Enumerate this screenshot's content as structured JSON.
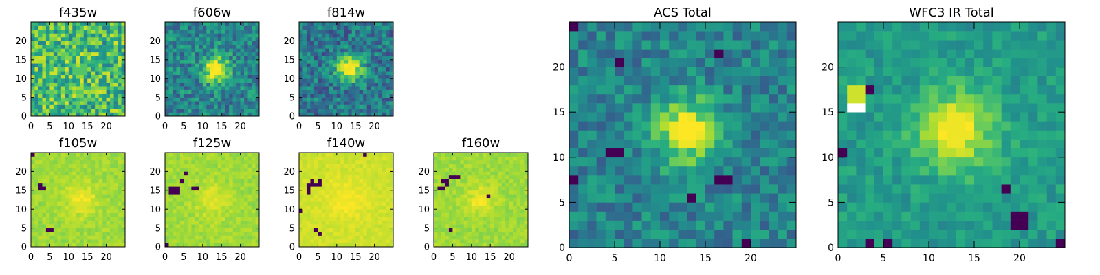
{
  "chart_data": [
    {
      "type": "heatmap",
      "title": "f435w",
      "grid_size": 25,
      "xlim": [
        0,
        25
      ],
      "ylim": [
        0,
        25
      ],
      "xticks": [
        0,
        5,
        10,
        15,
        20
      ],
      "yticks": [
        0,
        5,
        10,
        15,
        20
      ],
      "colormap": "viridis",
      "source": {
        "center": [
          12.5,
          12
        ],
        "radius": 2.6,
        "peak": 0.75,
        "base": 0.68,
        "noise": 0.26,
        "hot_pixels": [],
        "saturated_pixels": []
      }
    },
    {
      "type": "heatmap",
      "title": "f606w",
      "grid_size": 25,
      "xlim": [
        0,
        25
      ],
      "ylim": [
        0,
        25
      ],
      "xticks": [
        0,
        5,
        10,
        15,
        20
      ],
      "yticks": [
        0,
        5,
        10,
        15,
        20
      ],
      "colormap": "viridis",
      "source": {
        "center": [
          13,
          12
        ],
        "radius": 2.5,
        "peak": 1.0,
        "base": 0.45,
        "noise": 0.2,
        "hot_pixels": [],
        "saturated_pixels": []
      }
    },
    {
      "type": "heatmap",
      "title": "f814w",
      "grid_size": 25,
      "xlim": [
        0,
        25
      ],
      "ylim": [
        0,
        25
      ],
      "xticks": [
        0,
        5,
        10,
        15,
        20
      ],
      "yticks": [
        0,
        5,
        10,
        15,
        20
      ],
      "colormap": "viridis",
      "source": {
        "center": [
          13,
          12
        ],
        "radius": 2.5,
        "peak": 1.0,
        "base": 0.4,
        "noise": 0.2,
        "hot_pixels": [],
        "saturated_pixels": []
      }
    },
    {
      "type": "heatmap",
      "title": "f105w",
      "grid_size": 25,
      "xlim": [
        0,
        25
      ],
      "ylim": [
        0,
        25
      ],
      "xticks": [
        0,
        5,
        10,
        15,
        20
      ],
      "yticks": [
        0,
        5,
        10,
        15,
        20
      ],
      "colormap": "viridis",
      "source": {
        "center": [
          13,
          12
        ],
        "radius": 3.2,
        "peak": 0.97,
        "base": 0.86,
        "noise": 0.05,
        "hot_pixels": [
          [
            2,
            16
          ],
          [
            2,
            15
          ],
          [
            3,
            15
          ],
          [
            4,
            4
          ],
          [
            5,
            4
          ],
          [
            0,
            24
          ]
        ],
        "saturated_pixels": []
      }
    },
    {
      "type": "heatmap",
      "title": "f125w",
      "grid_size": 25,
      "xlim": [
        0,
        25
      ],
      "ylim": [
        0,
        25
      ],
      "xticks": [
        0,
        5,
        10,
        15,
        20
      ],
      "yticks": [
        0,
        5,
        10,
        15,
        20
      ],
      "colormap": "viridis",
      "source": {
        "center": [
          12,
          12
        ],
        "radius": 3.4,
        "peak": 0.95,
        "base": 0.86,
        "noise": 0.05,
        "hot_pixels": [
          [
            1,
            15
          ],
          [
            2,
            15
          ],
          [
            3,
            15
          ],
          [
            1,
            14
          ],
          [
            2,
            14
          ],
          [
            3,
            14
          ],
          [
            4,
            17
          ],
          [
            7,
            15
          ],
          [
            8,
            15
          ],
          [
            5,
            19
          ],
          [
            0,
            0
          ]
        ],
        "saturated_pixels": []
      }
    },
    {
      "type": "heatmap",
      "title": "f140w",
      "grid_size": 25,
      "xlim": [
        0,
        25
      ],
      "ylim": [
        0,
        25
      ],
      "xticks": [
        0,
        5,
        10,
        15,
        20
      ],
      "yticks": [
        0,
        5,
        10,
        15,
        20
      ],
      "colormap": "viridis",
      "source": {
        "center": [
          12,
          12
        ],
        "radius": 4,
        "peak": 0.99,
        "base": 0.93,
        "noise": 0.03,
        "hot_pixels": [
          [
            2,
            16
          ],
          [
            2,
            15
          ],
          [
            3,
            16
          ],
          [
            3,
            17
          ],
          [
            4,
            16
          ],
          [
            5,
            16
          ],
          [
            5,
            17
          ],
          [
            2,
            14
          ],
          [
            0,
            9
          ],
          [
            4,
            4
          ],
          [
            5,
            3
          ],
          [
            17,
            24
          ]
        ],
        "saturated_pixels": []
      }
    },
    {
      "type": "heatmap",
      "title": "f160w",
      "grid_size": 25,
      "xlim": [
        0,
        25
      ],
      "ylim": [
        0,
        25
      ],
      "xticks": [
        0,
        5,
        10,
        15,
        20
      ],
      "yticks": [
        0,
        5,
        10,
        15,
        20
      ],
      "colormap": "viridis",
      "source": {
        "center": [
          12,
          12
        ],
        "radius": 2.5,
        "peak": 0.99,
        "base": 0.86,
        "noise": 0.05,
        "hot_pixels": [
          [
            4,
            18
          ],
          [
            5,
            18
          ],
          [
            6,
            18
          ],
          [
            2,
            17
          ],
          [
            3,
            17
          ],
          [
            3,
            16
          ],
          [
            1,
            15
          ],
          [
            2,
            15
          ],
          [
            14,
            13
          ],
          [
            4,
            4
          ]
        ],
        "saturated_pixels": []
      }
    },
    {
      "type": "heatmap",
      "title": "ACS Total",
      "grid_size": 25,
      "xlim": [
        0,
        25
      ],
      "ylim": [
        0,
        25
      ],
      "xticks": [
        0,
        5,
        10,
        15,
        20
      ],
      "yticks": [
        0,
        5,
        10,
        15,
        20
      ],
      "colormap": "viridis",
      "source": {
        "center": [
          12.5,
          12.5
        ],
        "radius": 2.6,
        "peak": 1.0,
        "base": 0.45,
        "noise": 0.16,
        "hot_pixels": [
          [
            5,
            20
          ],
          [
            16,
            21
          ],
          [
            4,
            10
          ],
          [
            5,
            10
          ],
          [
            16,
            7
          ],
          [
            17,
            7
          ],
          [
            19,
            0
          ],
          [
            13,
            5
          ],
          [
            0,
            24
          ],
          [
            0,
            7
          ]
        ],
        "saturated_pixels": []
      }
    },
    {
      "type": "heatmap",
      "title": "WFC3 IR Total",
      "grid_size": 25,
      "xlim": [
        0,
        25
      ],
      "ylim": [
        0,
        25
      ],
      "xticks": [
        0,
        5,
        10,
        15,
        20
      ],
      "yticks": [
        0,
        5,
        10,
        15,
        20
      ],
      "colormap": "viridis",
      "source": {
        "center": [
          12.5,
          12.5
        ],
        "radius": 3.0,
        "peak": 1.0,
        "base": 0.55,
        "noise": 0.1,
        "hot_pixels": [
          [
            3,
            17
          ],
          [
            0,
            10
          ],
          [
            19,
            3
          ],
          [
            20,
            3
          ],
          [
            20,
            2
          ],
          [
            19,
            2
          ],
          [
            18,
            6
          ],
          [
            24,
            0
          ],
          [
            5,
            0
          ],
          [
            3,
            0
          ]
        ],
        "saturated_pixels": [
          [
            1,
            15
          ],
          [
            2,
            15
          ]
        ],
        "bright_pixels": [
          [
            1,
            17
          ],
          [
            2,
            17
          ],
          [
            1,
            16
          ],
          [
            2,
            16
          ]
        ]
      }
    }
  ]
}
